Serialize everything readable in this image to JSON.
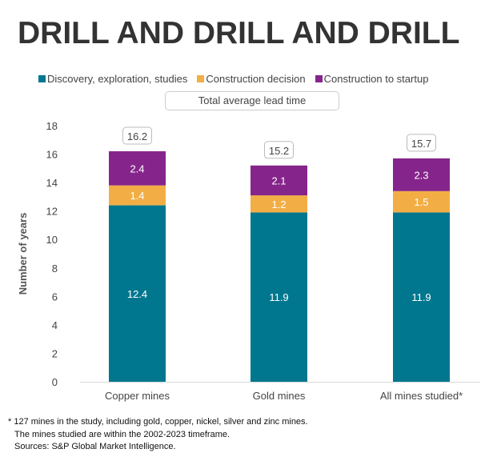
{
  "title": "DRILL AND DRILL AND DRILL",
  "chart_data": {
    "type": "bar",
    "stacked": true,
    "categories": [
      "Copper mines",
      "Gold mines",
      "All mines studied*"
    ],
    "series": [
      {
        "name": "Discovery, exploration, studies",
        "color": "#00778F",
        "values": [
          12.4,
          11.9,
          11.9
        ]
      },
      {
        "name": "Construction decision",
        "color": "#F2AE45",
        "values": [
          1.4,
          1.2,
          1.5
        ]
      },
      {
        "name": "Construction to startup",
        "color": "#85258B",
        "values": [
          2.4,
          2.1,
          2.3
        ]
      }
    ],
    "totals": {
      "name": "Total average lead time",
      "values": [
        16.2,
        15.2,
        15.7
      ]
    },
    "ylabel": "Number of years",
    "xlabel": "",
    "ylim": [
      0,
      18
    ],
    "yticks": [
      0,
      2,
      4,
      6,
      8,
      10,
      12,
      14,
      16,
      18
    ],
    "grid": false,
    "legend_position": "top"
  },
  "footnotes": [
    "* 127 mines in the study, including gold, copper, nickel, silver and zinc mines.",
    "The mines studied are within the 2002-2023 timeframe.",
    "Sources: S&P Global Market Intelligence."
  ]
}
